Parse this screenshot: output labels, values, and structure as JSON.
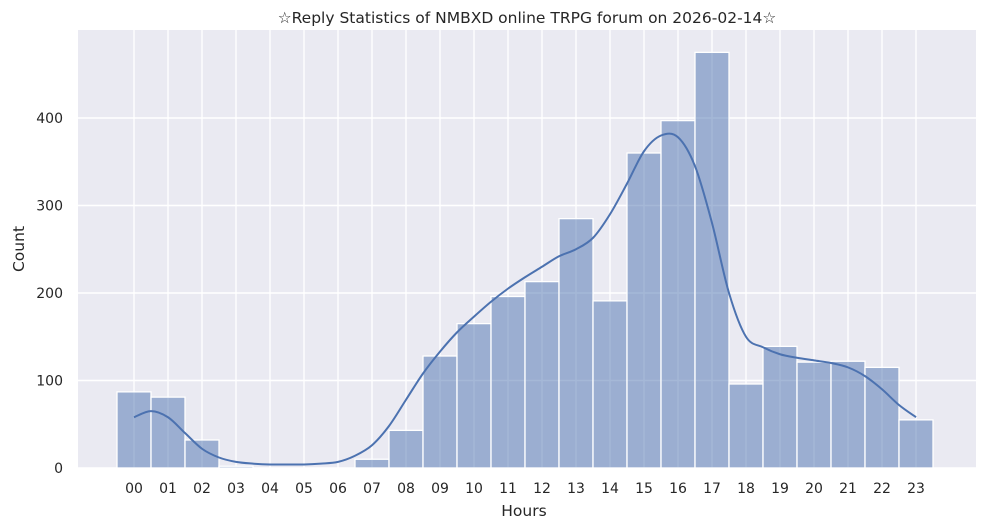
{
  "chart_data": {
    "type": "bar",
    "title": "☆Reply Statistics of NMBXD online TRPG forum on 2026-02-14☆",
    "xlabel": "Hours",
    "ylabel": "Count",
    "categories": [
      "00",
      "01",
      "02",
      "03",
      "04",
      "05",
      "06",
      "07",
      "08",
      "09",
      "10",
      "11",
      "12",
      "13",
      "14",
      "15",
      "16",
      "17",
      "18",
      "19",
      "20",
      "21",
      "22",
      "23"
    ],
    "values": [
      87,
      81,
      32,
      2,
      0,
      0,
      0,
      10,
      43,
      128,
      165,
      196,
      213,
      285,
      191,
      360,
      397,
      475,
      96,
      139,
      121,
      122,
      115,
      55
    ],
    "kde_curve": [
      [
        0,
        58
      ],
      [
        0.5,
        65
      ],
      [
        1,
        58
      ],
      [
        1.5,
        40
      ],
      [
        2,
        22
      ],
      [
        2.5,
        12
      ],
      [
        3,
        7
      ],
      [
        3.5,
        5
      ],
      [
        4,
        4
      ],
      [
        4.5,
        4
      ],
      [
        5,
        4
      ],
      [
        5.5,
        5
      ],
      [
        6,
        7
      ],
      [
        6.5,
        14
      ],
      [
        7,
        26
      ],
      [
        7.5,
        48
      ],
      [
        8,
        78
      ],
      [
        8.5,
        108
      ],
      [
        9,
        133
      ],
      [
        9.5,
        155
      ],
      [
        10,
        173
      ],
      [
        10.5,
        190
      ],
      [
        11,
        205
      ],
      [
        11.5,
        218
      ],
      [
        12,
        230
      ],
      [
        12.5,
        242
      ],
      [
        13,
        250
      ],
      [
        13.5,
        263
      ],
      [
        14,
        290
      ],
      [
        14.5,
        325
      ],
      [
        15,
        362
      ],
      [
        15.5,
        380
      ],
      [
        16,
        378
      ],
      [
        16.5,
        345
      ],
      [
        17,
        280
      ],
      [
        17.5,
        200
      ],
      [
        18,
        150
      ],
      [
        18.5,
        138
      ],
      [
        19,
        130
      ],
      [
        19.5,
        126
      ],
      [
        20,
        123
      ],
      [
        20.5,
        120
      ],
      [
        21,
        115
      ],
      [
        21.5,
        105
      ],
      [
        22,
        90
      ],
      [
        22.5,
        72
      ],
      [
        23,
        58
      ]
    ],
    "yticks": [
      0,
      100,
      200,
      300,
      400
    ],
    "ylim": [
      0,
      500
    ],
    "grid": true,
    "colors": {
      "bar": "#4c72b0",
      "background": "#eaeaf2",
      "grid": "#ffffff"
    }
  }
}
